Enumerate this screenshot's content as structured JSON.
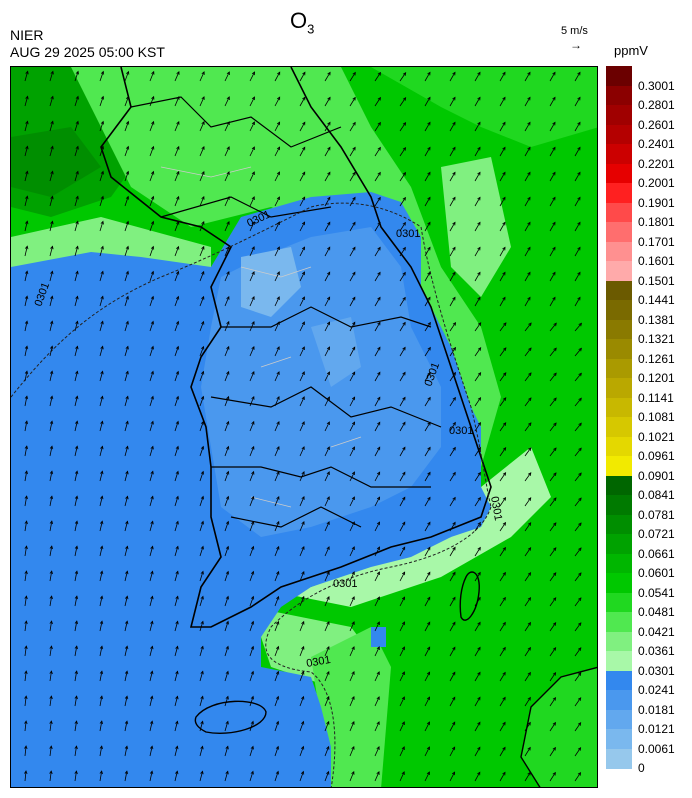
{
  "header": {
    "agency": "NIER",
    "datetime": "AUG 29 2025 05:00 KST",
    "title_main": "O",
    "title_sub": "3",
    "vector_scale": "5 m/s",
    "unit": "ppmV"
  },
  "colorbar": {
    "labels": [
      "0.3001",
      "0.2801",
      "0.2601",
      "0.2401",
      "0.2201",
      "0.2001",
      "0.1901",
      "0.1801",
      "0.1701",
      "0.1601",
      "0.1501",
      "0.1441",
      "0.1381",
      "0.1321",
      "0.1261",
      "0.1201",
      "0.1141",
      "0.1081",
      "0.1021",
      "0.0961",
      "0.0901",
      "0.0841",
      "0.0781",
      "0.0721",
      "0.0661",
      "0.0601",
      "0.0541",
      "0.0481",
      "0.0421",
      "0.0361",
      "0.0301",
      "0.0241",
      "0.0181",
      "0.0121",
      "0.0061",
      "0"
    ],
    "colors": [
      "#6b0000",
      "#8b0000",
      "#a00000",
      "#b40000",
      "#cc0000",
      "#e60000",
      "#ff2020",
      "#ff4a4a",
      "#ff6e6e",
      "#ff9090",
      "#ffaaaa",
      "#6b5a00",
      "#7a6a00",
      "#8a7a00",
      "#9a8a00",
      "#aa9a00",
      "#baa800",
      "#c8b800",
      "#d6c800",
      "#e4d800",
      "#f2ea00",
      "#006600",
      "#007a00",
      "#008e00",
      "#00a200",
      "#00b600",
      "#00c800",
      "#20d820",
      "#50e850",
      "#80f080",
      "#a8f8a8",
      "#3388ee",
      "#4a98ee",
      "#62a8ee",
      "#7ab8ee",
      "#96c8ec"
    ]
  },
  "map": {
    "contour_labels": [
      "0301",
      "0301",
      "0301",
      "0301",
      "0301",
      "0301",
      "0301",
      "0301"
    ],
    "icons": [
      "wind-arrow-icon",
      "coastline",
      "province-boundary"
    ]
  }
}
